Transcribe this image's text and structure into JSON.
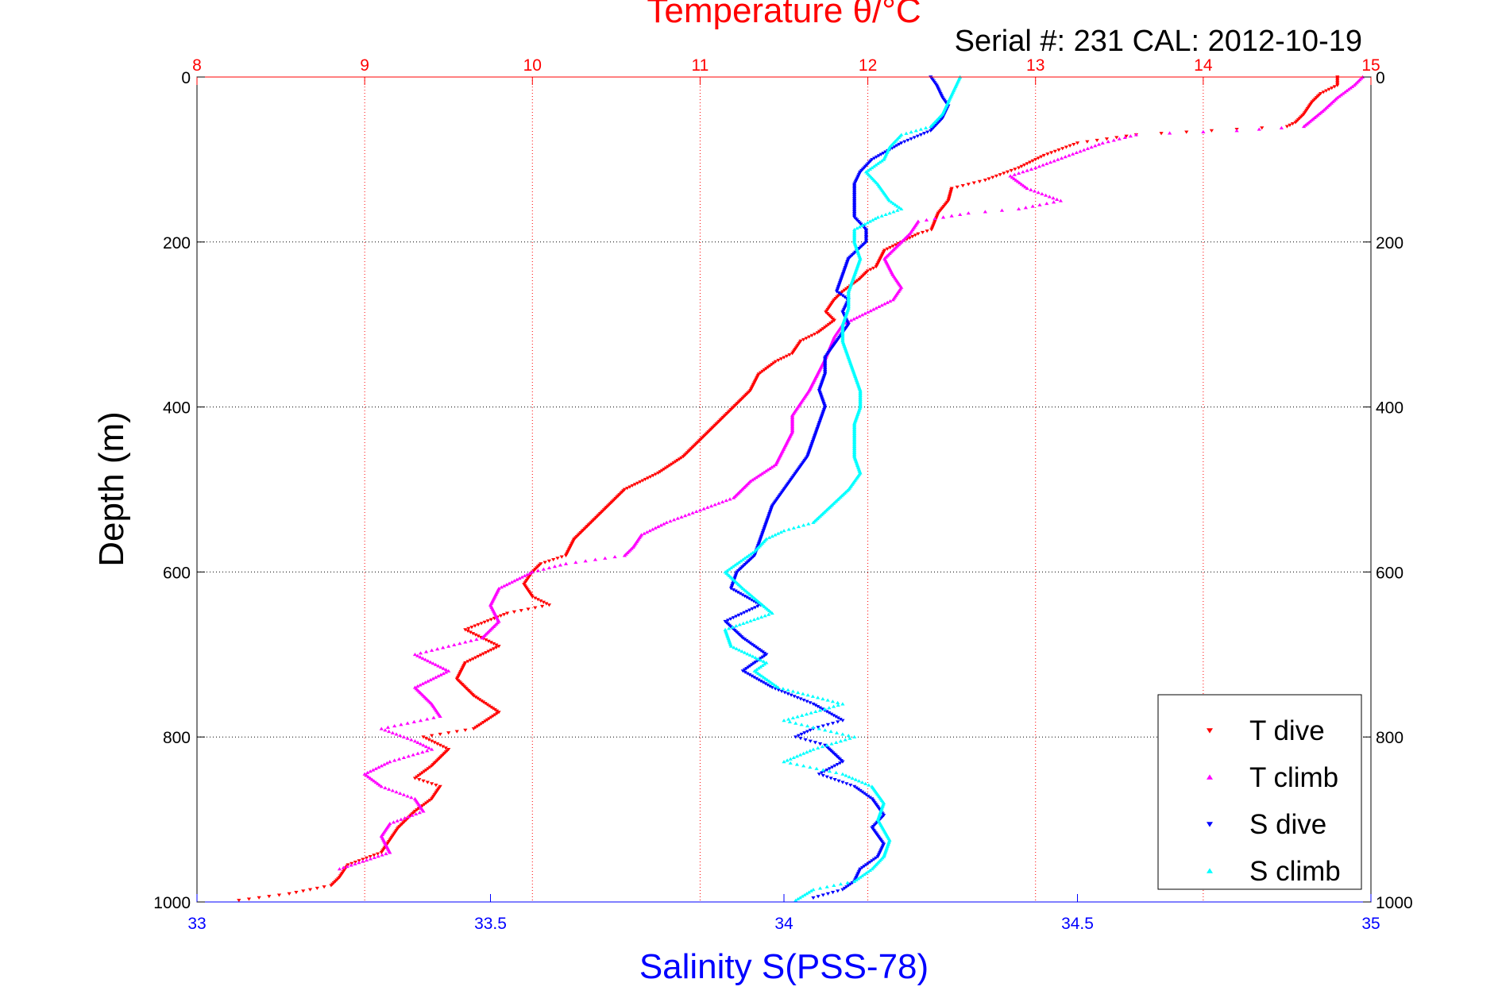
{
  "chart_data": {
    "type": "scatter",
    "title": "Temperature θ/°C",
    "subtitle": "Serial #: 231  CAL: 2012-10-19",
    "xlabel": "Salinity S(PSS-78)",
    "ylabel": "Depth (m)",
    "top_axis": {
      "min": 8,
      "max": 15,
      "ticks": [
        "8",
        "9",
        "10",
        "11",
        "12",
        "13",
        "14",
        "15"
      ],
      "color": "#ff0000",
      "grid": "dotted"
    },
    "bottom_axis": {
      "min": 33,
      "max": 35,
      "ticks": [
        "33",
        "33.5",
        "34",
        "34.5",
        "35"
      ],
      "color": "#0000ff"
    },
    "y_axis": {
      "min": 0,
      "max": 1000,
      "reversed": true,
      "ticks": [
        "0",
        "200",
        "400",
        "600",
        "800",
        "1000"
      ],
      "grid": "dotted"
    },
    "legend_position": "bottom-right",
    "series": [
      {
        "name": "T dive",
        "axis": "temperature",
        "color": "#ff0000",
        "marker": "triangle-down",
        "points": [
          [
            14.8,
            0
          ],
          [
            14.8,
            10
          ],
          [
            14.7,
            20
          ],
          [
            14.65,
            30
          ],
          [
            14.6,
            45
          ],
          [
            14.55,
            55
          ],
          [
            14.5,
            60
          ],
          [
            13.6,
            70
          ],
          [
            13.25,
            80
          ],
          [
            13.05,
            95
          ],
          [
            12.9,
            110
          ],
          [
            12.7,
            125
          ],
          [
            12.5,
            135
          ],
          [
            12.48,
            150
          ],
          [
            12.42,
            165
          ],
          [
            12.4,
            175
          ],
          [
            12.38,
            185
          ],
          [
            12.3,
            190
          ],
          [
            12.2,
            200
          ],
          [
            12.1,
            210
          ],
          [
            12.05,
            230
          ],
          [
            12.0,
            235
          ],
          [
            11.95,
            245
          ],
          [
            11.85,
            260
          ],
          [
            11.8,
            270
          ],
          [
            11.75,
            285
          ],
          [
            11.8,
            295
          ],
          [
            11.7,
            310
          ],
          [
            11.6,
            320
          ],
          [
            11.55,
            335
          ],
          [
            11.45,
            345
          ],
          [
            11.35,
            360
          ],
          [
            11.3,
            380
          ],
          [
            11.2,
            400
          ],
          [
            11.05,
            430
          ],
          [
            10.9,
            460
          ],
          [
            10.75,
            480
          ],
          [
            10.55,
            500
          ],
          [
            10.45,
            520
          ],
          [
            10.35,
            540
          ],
          [
            10.25,
            560
          ],
          [
            10.2,
            580
          ],
          [
            10.05,
            590
          ],
          [
            10.0,
            600
          ],
          [
            9.95,
            615
          ],
          [
            10.0,
            630
          ],
          [
            10.1,
            640
          ],
          [
            9.85,
            650
          ],
          [
            9.6,
            670
          ],
          [
            9.8,
            690
          ],
          [
            9.6,
            710
          ],
          [
            9.55,
            730
          ],
          [
            9.65,
            750
          ],
          [
            9.8,
            770
          ],
          [
            9.65,
            790
          ],
          [
            9.35,
            800
          ],
          [
            9.5,
            815
          ],
          [
            9.4,
            835
          ],
          [
            9.3,
            850
          ],
          [
            9.45,
            860
          ],
          [
            9.4,
            875
          ],
          [
            9.3,
            890
          ],
          [
            9.2,
            910
          ],
          [
            9.15,
            925
          ],
          [
            9.1,
            940
          ],
          [
            8.9,
            955
          ],
          [
            8.85,
            970
          ],
          [
            8.8,
            980
          ],
          [
            8.55,
            990
          ],
          [
            8.25,
            998
          ]
        ]
      },
      {
        "name": "T climb",
        "axis": "temperature",
        "color": "#ff00ff",
        "marker": "triangle-up",
        "points": [
          [
            14.95,
            0
          ],
          [
            14.9,
            10
          ],
          [
            14.8,
            25
          ],
          [
            14.72,
            40
          ],
          [
            14.6,
            60
          ],
          [
            14.2,
            65
          ],
          [
            13.8,
            68
          ],
          [
            13.6,
            70
          ],
          [
            13.4,
            80
          ],
          [
            13.2,
            95
          ],
          [
            13.0,
            110
          ],
          [
            12.85,
            120
          ],
          [
            12.95,
            135
          ],
          [
            13.15,
            150
          ],
          [
            12.9,
            160
          ],
          [
            12.6,
            165
          ],
          [
            12.3,
            175
          ],
          [
            12.25,
            190
          ],
          [
            12.2,
            200
          ],
          [
            12.1,
            220
          ],
          [
            12.15,
            240
          ],
          [
            12.2,
            255
          ],
          [
            12.15,
            270
          ],
          [
            12.0,
            285
          ],
          [
            11.85,
            300
          ],
          [
            11.8,
            315
          ],
          [
            11.75,
            340
          ],
          [
            11.7,
            360
          ],
          [
            11.65,
            380
          ],
          [
            11.6,
            395
          ],
          [
            11.55,
            410
          ],
          [
            11.55,
            430
          ],
          [
            11.5,
            450
          ],
          [
            11.45,
            470
          ],
          [
            11.3,
            490
          ],
          [
            11.2,
            510
          ],
          [
            11.0,
            525
          ],
          [
            10.8,
            540
          ],
          [
            10.65,
            555
          ],
          [
            10.6,
            570
          ],
          [
            10.55,
            580
          ],
          [
            10.2,
            590
          ],
          [
            10.0,
            600
          ],
          [
            9.8,
            620
          ],
          [
            9.75,
            640
          ],
          [
            9.8,
            660
          ],
          [
            9.7,
            680
          ],
          [
            9.5,
            690
          ],
          [
            9.3,
            700
          ],
          [
            9.5,
            720
          ],
          [
            9.3,
            740
          ],
          [
            9.4,
            760
          ],
          [
            9.45,
            775
          ],
          [
            9.1,
            790
          ],
          [
            9.3,
            805
          ],
          [
            9.4,
            815
          ],
          [
            9.15,
            830
          ],
          [
            9.0,
            845
          ],
          [
            9.1,
            860
          ],
          [
            9.3,
            875
          ],
          [
            9.35,
            890
          ],
          [
            9.15,
            905
          ],
          [
            9.1,
            920
          ],
          [
            9.15,
            940
          ],
          [
            8.85,
            960
          ]
        ]
      },
      {
        "name": "S dive",
        "axis": "salinity",
        "color": "#0000ff",
        "marker": "triangle-down",
        "points": [
          [
            34.25,
            0
          ],
          [
            34.26,
            10
          ],
          [
            34.27,
            25
          ],
          [
            34.28,
            35
          ],
          [
            34.27,
            50
          ],
          [
            34.25,
            65
          ],
          [
            34.2,
            80
          ],
          [
            34.15,
            100
          ],
          [
            34.13,
            115
          ],
          [
            34.12,
            130
          ],
          [
            34.12,
            150
          ],
          [
            34.12,
            170
          ],
          [
            34.14,
            185
          ],
          [
            34.14,
            200
          ],
          [
            34.11,
            220
          ],
          [
            34.1,
            240
          ],
          [
            34.09,
            260
          ],
          [
            34.11,
            270
          ],
          [
            34.1,
            285
          ],
          [
            34.11,
            300
          ],
          [
            34.09,
            320
          ],
          [
            34.07,
            340
          ],
          [
            34.07,
            360
          ],
          [
            34.06,
            380
          ],
          [
            34.07,
            400
          ],
          [
            34.06,
            420
          ],
          [
            34.05,
            440
          ],
          [
            34.04,
            460
          ],
          [
            34.02,
            480
          ],
          [
            34.0,
            500
          ],
          [
            33.98,
            520
          ],
          [
            33.97,
            540
          ],
          [
            33.96,
            560
          ],
          [
            33.95,
            580
          ],
          [
            33.92,
            600
          ],
          [
            33.91,
            620
          ],
          [
            33.96,
            640
          ],
          [
            33.9,
            660
          ],
          [
            33.93,
            680
          ],
          [
            33.97,
            700
          ],
          [
            33.93,
            720
          ],
          [
            33.98,
            740
          ],
          [
            34.05,
            760
          ],
          [
            34.1,
            780
          ],
          [
            34.05,
            790
          ],
          [
            34.02,
            800
          ],
          [
            34.07,
            810
          ],
          [
            34.1,
            830
          ],
          [
            34.06,
            845
          ],
          [
            34.12,
            860
          ],
          [
            34.15,
            875
          ],
          [
            34.17,
            895
          ],
          [
            34.15,
            910
          ],
          [
            34.17,
            930
          ],
          [
            34.16,
            945
          ],
          [
            34.13,
            960
          ],
          [
            34.12,
            975
          ],
          [
            34.1,
            985
          ],
          [
            34.05,
            995
          ]
        ]
      },
      {
        "name": "S climb",
        "axis": "salinity",
        "color": "#00ffff",
        "marker": "triangle-up",
        "points": [
          [
            34.3,
            0
          ],
          [
            34.29,
            15
          ],
          [
            34.28,
            30
          ],
          [
            34.27,
            45
          ],
          [
            34.25,
            60
          ],
          [
            34.2,
            70
          ],
          [
            34.18,
            85
          ],
          [
            34.17,
            100
          ],
          [
            34.14,
            115
          ],
          [
            34.16,
            130
          ],
          [
            34.18,
            150
          ],
          [
            34.2,
            160
          ],
          [
            34.16,
            170
          ],
          [
            34.12,
            185
          ],
          [
            34.12,
            200
          ],
          [
            34.13,
            220
          ],
          [
            34.12,
            240
          ],
          [
            34.11,
            260
          ],
          [
            34.11,
            280
          ],
          [
            34.1,
            300
          ],
          [
            34.1,
            320
          ],
          [
            34.11,
            340
          ],
          [
            34.12,
            360
          ],
          [
            34.13,
            380
          ],
          [
            34.13,
            400
          ],
          [
            34.12,
            420
          ],
          [
            34.12,
            440
          ],
          [
            34.12,
            460
          ],
          [
            34.13,
            480
          ],
          [
            34.11,
            500
          ],
          [
            34.08,
            520
          ],
          [
            34.05,
            540
          ],
          [
            34.0,
            550
          ],
          [
            33.97,
            560
          ],
          [
            33.95,
            575
          ],
          [
            33.92,
            590
          ],
          [
            33.9,
            600
          ],
          [
            33.93,
            620
          ],
          [
            33.98,
            650
          ],
          [
            33.9,
            670
          ],
          [
            33.91,
            690
          ],
          [
            33.97,
            710
          ],
          [
            33.95,
            720
          ],
          [
            33.99,
            740
          ],
          [
            34.1,
            760
          ],
          [
            34.0,
            780
          ],
          [
            34.06,
            790
          ],
          [
            34.12,
            800
          ],
          [
            34.05,
            815
          ],
          [
            34.0,
            830
          ],
          [
            34.1,
            845
          ],
          [
            34.15,
            860
          ],
          [
            34.17,
            880
          ],
          [
            34.16,
            900
          ],
          [
            34.18,
            925
          ],
          [
            34.17,
            945
          ],
          [
            34.15,
            960
          ],
          [
            34.12,
            975
          ],
          [
            34.05,
            985
          ],
          [
            34.02,
            998
          ]
        ]
      }
    ]
  }
}
